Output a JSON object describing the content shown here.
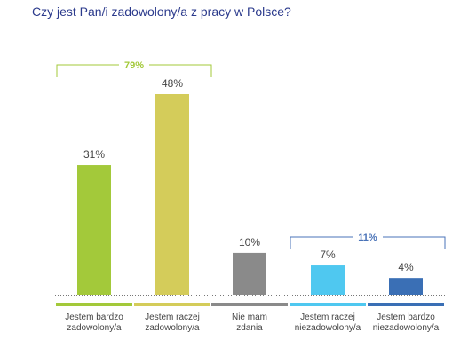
{
  "chart_data": {
    "type": "bar",
    "title": "Czy jest Pan/i zadowolony/a z pracy w Polsce?",
    "categories": [
      [
        "Jestem bardzo",
        "zadowolony/a"
      ],
      [
        "Jestem raczej",
        "zadowolony/a"
      ],
      [
        "Nie mam",
        "zdania"
      ],
      [
        "Jestem raczej",
        "niezadowolony/a"
      ],
      [
        "Jestem bardzo",
        "niezadowolony/a"
      ]
    ],
    "values": [
      31,
      48,
      10,
      7,
      4
    ],
    "value_labels": [
      "31%",
      "48%",
      "10%",
      "7%",
      "4%"
    ],
    "colors": [
      "#a3c93a",
      "#d4cc5a",
      "#8a8a8a",
      "#4fc8f0",
      "#3a6fb5"
    ],
    "ylim": [
      0,
      48
    ],
    "grid": false,
    "legend": "none",
    "groups": [
      {
        "label": "79%",
        "from": 0,
        "to": 1,
        "color": "#a3c93a"
      },
      {
        "label": "11%",
        "from": 3,
        "to": 4,
        "color": "#4a73b8"
      }
    ]
  }
}
